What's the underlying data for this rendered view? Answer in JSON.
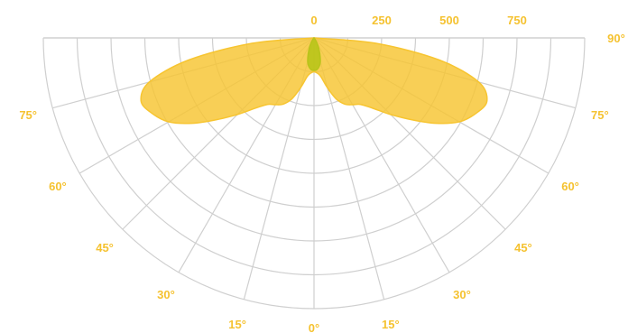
{
  "chart_data": {
    "type": "polar",
    "subtype": "luminous-intensity-distribution",
    "radial_ticks": [
      "0",
      "250",
      "500",
      "750"
    ],
    "radial_max": 1000,
    "angle_labels": {
      "left": [
        "75°",
        "60°",
        "45°",
        "30°",
        "15°"
      ],
      "center": "0°",
      "right": [
        "15°",
        "30°",
        "45°",
        "60°",
        "75°",
        "90°"
      ]
    },
    "grid": true,
    "series": [
      {
        "color": "#f7c531",
        "fill_opacity": 0.82,
        "angles_deg": [
          0,
          5,
          10,
          15,
          20,
          25,
          30,
          35,
          40,
          45,
          50,
          55,
          60,
          65,
          70,
          75,
          80,
          85,
          90
        ],
        "values": [
          125,
          130,
          145,
          190,
          240,
          270,
          285,
          300,
          340,
          400,
          470,
          550,
          620,
          660,
          680,
          630,
          470,
          230,
          0
        ]
      },
      {
        "color": "#b8c41a",
        "fill_opacity": 0.9,
        "angles_deg": [
          0,
          5,
          10,
          15,
          20,
          25,
          30,
          35,
          40,
          45,
          50,
          55,
          60,
          65,
          70,
          75,
          80,
          85,
          90
        ],
        "values": [
          120,
          118,
          108,
          90,
          62,
          40,
          22,
          10,
          3,
          0,
          0,
          0,
          0,
          0,
          0,
          0,
          0,
          0,
          0
        ]
      }
    ],
    "colors": {
      "label": "#f5c230",
      "grid": "#cfcfcf"
    }
  }
}
